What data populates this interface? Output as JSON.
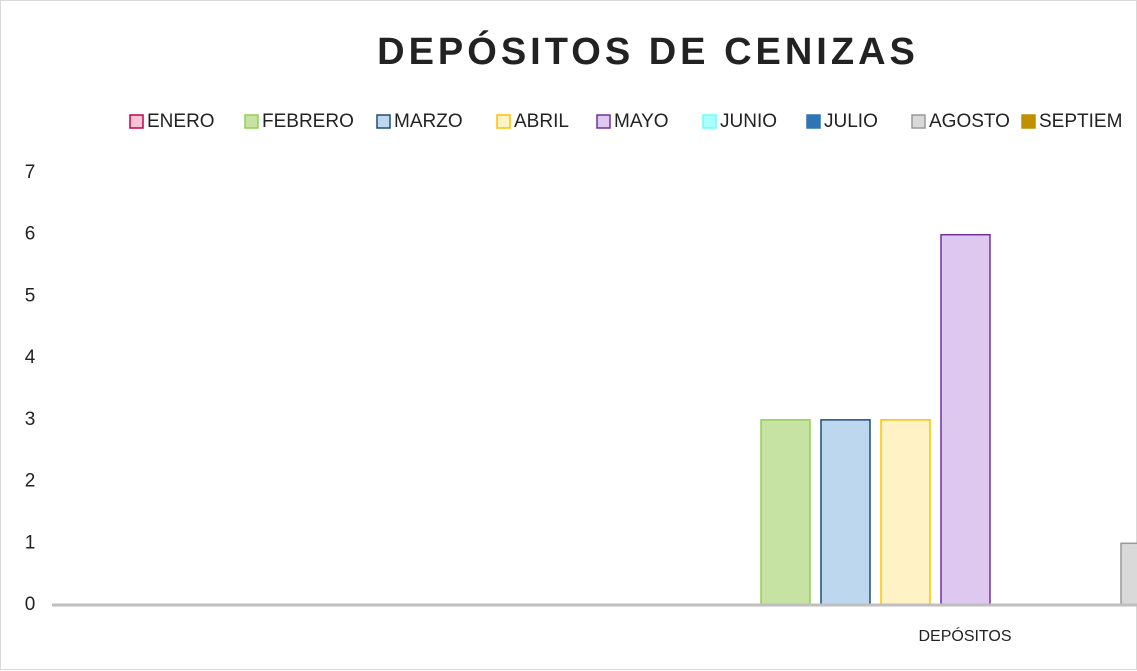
{
  "chart_data": {
    "type": "bar",
    "title": "DEPÓSITOS DE CENIZAS",
    "categories": [
      "DEPÓSITOS"
    ],
    "series": [
      {
        "name": "ENERO",
        "color": "#c0004f",
        "fill": "#f6c4d4",
        "values": [
          0
        ]
      },
      {
        "name": "FEBRERO",
        "color": "#92d050",
        "fill": "#c6e3a4",
        "values": [
          3
        ]
      },
      {
        "name": "MARZO",
        "color": "#1f4e79",
        "fill": "#bdd7ee",
        "values": [
          3
        ]
      },
      {
        "name": "ABRIL",
        "color": "#ffc000",
        "fill": "#fff2c4",
        "values": [
          3
        ]
      },
      {
        "name": "MAYO",
        "color": "#7030a0",
        "fill": "#dfc8ef",
        "values": [
          6
        ]
      },
      {
        "name": "JUNIO",
        "color": "#66ffff",
        "fill": "#aaffff",
        "values": [
          0
        ]
      },
      {
        "name": "JULIO",
        "color": "#2e75b6",
        "fill": "#2e75b6",
        "values": [
          0
        ]
      },
      {
        "name": "AGOSTO",
        "color": "#999999",
        "fill": "#d9d9d9",
        "values": [
          1
        ]
      },
      {
        "name": "SEPTIEM",
        "color": "#bf9000",
        "fill": "#bf9000",
        "values": [
          null
        ]
      }
    ],
    "ylim": [
      0,
      7
    ],
    "yticks": [
      0,
      1,
      2,
      3,
      4,
      5,
      6,
      7
    ],
    "grid": false,
    "legend": "top"
  }
}
